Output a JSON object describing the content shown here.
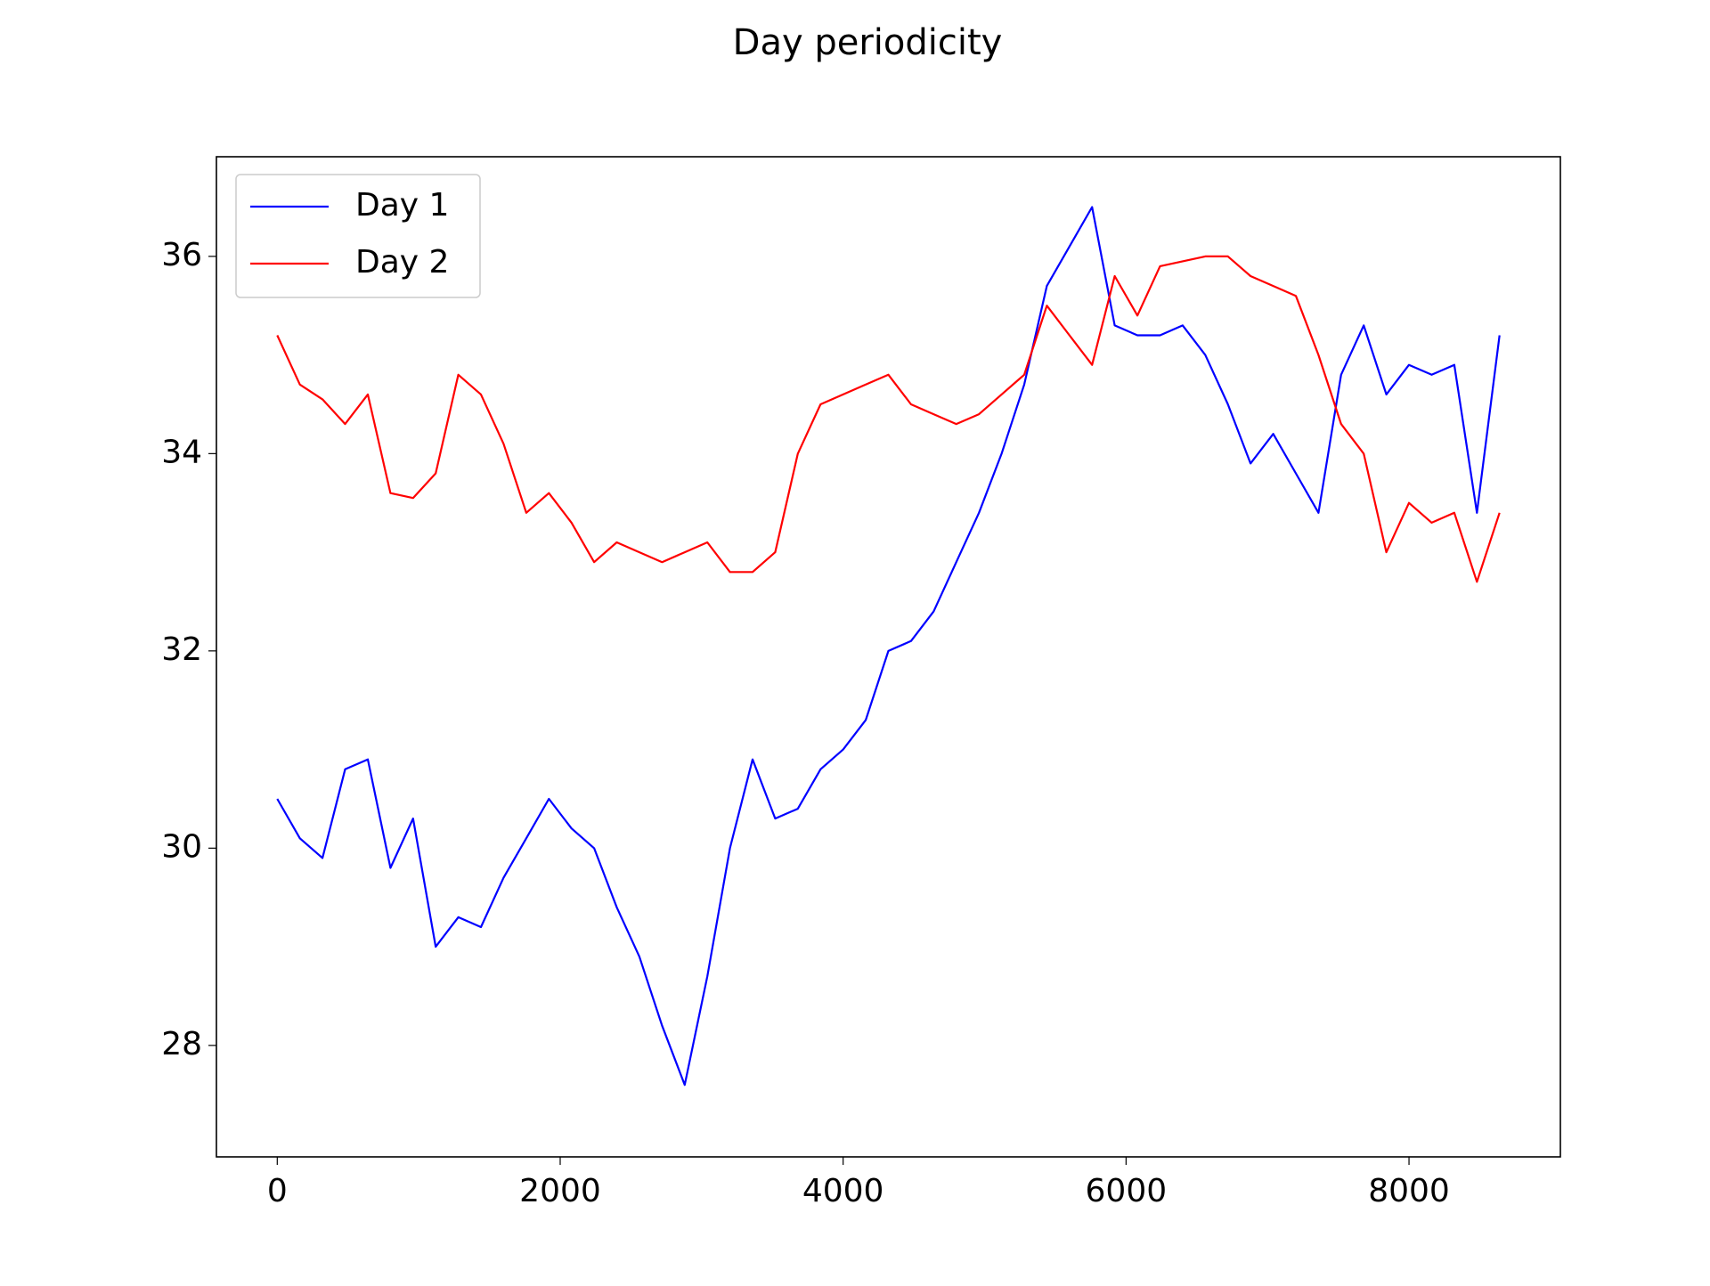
{
  "chart_data": {
    "type": "line",
    "title": "Day periodicity",
    "x": [
      0,
      160,
      320,
      480,
      640,
      800,
      960,
      1120,
      1280,
      1440,
      1600,
      1760,
      1920,
      2080,
      2240,
      2400,
      2560,
      2720,
      2880,
      3040,
      3200,
      3360,
      3520,
      3680,
      3840,
      4000,
      4160,
      4320,
      4480,
      4640,
      4800,
      4960,
      5120,
      5280,
      5440,
      5600,
      5760,
      5920,
      6080,
      6240,
      6400,
      6560,
      6720,
      6880,
      7040,
      7200,
      7360,
      7520,
      7680,
      7840,
      8000,
      8160,
      8320,
      8480,
      8640
    ],
    "series": [
      {
        "name": "Day 1",
        "color": "#0000ff",
        "values": [
          30.5,
          30.1,
          29.9,
          30.8,
          30.9,
          29.8,
          30.3,
          29.0,
          29.3,
          29.2,
          29.7,
          30.1,
          30.5,
          30.2,
          30.0,
          29.4,
          28.9,
          28.2,
          27.6,
          28.7,
          30.0,
          30.9,
          30.3,
          30.4,
          30.8,
          31.0,
          31.3,
          32.0,
          32.1,
          32.4,
          32.9,
          33.4,
          34.0,
          34.7,
          35.7,
          36.1,
          36.5,
          35.3,
          35.2,
          35.2,
          35.3,
          35.0,
          34.5,
          33.9,
          34.2,
          33.8,
          33.4,
          34.8,
          35.3,
          34.6,
          34.9,
          34.8,
          34.9,
          33.4,
          35.2
        ]
      },
      {
        "name": "Day 2",
        "color": "#ff0000",
        "values": [
          35.2,
          34.7,
          34.55,
          34.3,
          34.6,
          33.6,
          33.55,
          33.8,
          34.8,
          34.6,
          34.1,
          33.4,
          33.6,
          33.3,
          32.9,
          33.1,
          33.0,
          32.9,
          33.0,
          33.1,
          32.8,
          32.8,
          33.0,
          34.0,
          34.5,
          34.6,
          34.7,
          34.8,
          34.5,
          34.4,
          34.3,
          34.4,
          34.6,
          34.8,
          35.5,
          35.2,
          34.9,
          35.8,
          35.4,
          35.9,
          35.95,
          36.0,
          36.0,
          35.8,
          35.7,
          35.6,
          35.0,
          34.3,
          34.0,
          33.0,
          33.5,
          33.3,
          33.4,
          32.7,
          33.4
        ]
      }
    ],
    "xlim": [
      -430,
      9070
    ],
    "ylim": [
      26.87,
      37.01
    ],
    "xticks": [
      0,
      2000,
      4000,
      6000,
      8000
    ],
    "yticks": [
      28,
      30,
      32,
      34,
      36
    ],
    "legend": "upper left"
  }
}
